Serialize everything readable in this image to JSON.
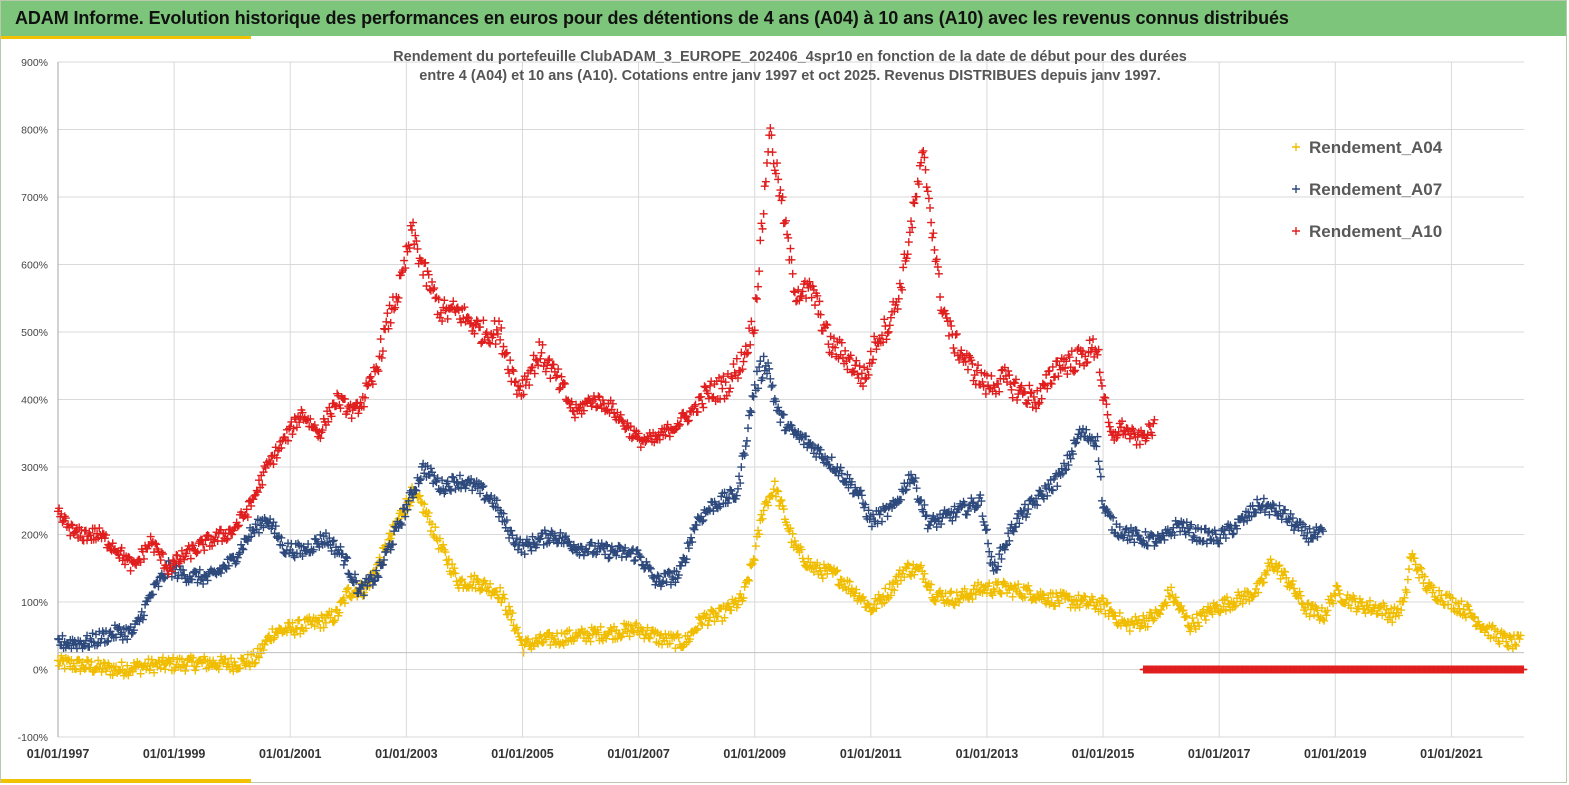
{
  "banner": {
    "title": "ADAM Informe. Evolution historique des performances en euros pour des détentions de 4 ans (A04) à 10 ans (A10) avec les revenus connus distribués"
  },
  "colors": {
    "banner": "#7dc57a",
    "accent": "#f2c200",
    "A04": "#f0bd00",
    "A07": "#2e4a7d",
    "A10": "#e01e1e",
    "grid": "#d9d9d9"
  },
  "chart_data": {
    "type": "scatter",
    "title_line1": "Rendement du portefeuille ClubADAM_3_EUROPE_202406_4spr10  en fonction de la date de début pour des durées",
    "title_line2": "entre 4 (A04) et 10 ans (A10). Cotations entre janv 1997 et oct 2025. Revenus DISTRIBUES depuis janv 1997.",
    "xlabel": "",
    "ylabel": "",
    "x_range": [
      1997.0,
      2022.25
    ],
    "ylim": [
      -100,
      900
    ],
    "y_ticks": [
      900,
      800,
      700,
      600,
      500,
      400,
      300,
      200,
      100,
      0,
      -100
    ],
    "y_tick_labels": [
      "900%",
      "800%",
      "700%",
      "600%",
      "500%",
      "400%",
      "300%",
      "200%",
      "100%",
      "0%",
      "-100%"
    ],
    "x_ticks": [
      1997,
      1999,
      2001,
      2003,
      2005,
      2007,
      2009,
      2011,
      2013,
      2015,
      2017,
      2019,
      2021
    ],
    "x_tick_labels": [
      "01/01/1997",
      "01/01/1999",
      "01/01/2001",
      "01/01/2003",
      "01/01/2005",
      "01/01/2007",
      "01/01/2009",
      "01/01/2011",
      "01/01/2013",
      "01/01/2015",
      "01/01/2017",
      "01/01/2019",
      "01/01/2021"
    ],
    "legend_position": "top-right",
    "series": [
      {
        "name": "Rendement_A04",
        "key": "A04",
        "x": [
          1997.0,
          1997.5,
          1998.0,
          1998.5,
          1999.0,
          1999.5,
          2000.0,
          2000.4,
          2000.7,
          2001.0,
          2001.5,
          2001.8,
          2002.0,
          2002.3,
          2002.6,
          2002.9,
          2003.1,
          2003.3,
          2003.6,
          2003.9,
          2004.2,
          2004.6,
          2004.9,
          2005.0,
          2005.5,
          2006.0,
          2006.5,
          2007.0,
          2007.4,
          2007.8,
          2008.1,
          2008.4,
          2008.8,
          2009.0,
          2009.15,
          2009.35,
          2009.7,
          2010.0,
          2010.4,
          2010.8,
          2011.0,
          2011.3,
          2011.6,
          2011.9,
          2012.1,
          2012.5,
          2012.9,
          2013.3,
          2013.7,
          2014.1,
          2014.6,
          2015.0,
          2015.4,
          2015.8,
          2016.0,
          2016.15,
          2016.5,
          2016.9,
          2017.2,
          2017.5,
          2017.7,
          2017.9,
          2018.2,
          2018.5,
          2018.8,
          2019.0,
          2019.4,
          2019.8,
          2020.0,
          2020.2,
          2020.3,
          2020.6,
          2021.0,
          2021.3,
          2021.6,
          2022.0,
          2022.2
        ],
        "y": [
          10,
          5,
          0,
          5,
          8,
          10,
          8,
          15,
          55,
          60,
          70,
          80,
          115,
          120,
          170,
          230,
          260,
          240,
          180,
          130,
          130,
          115,
          60,
          35,
          45,
          50,
          55,
          60,
          45,
          40,
          75,
          80,
          105,
          170,
          240,
          270,
          180,
          150,
          140,
          110,
          90,
          115,
          150,
          145,
          110,
          105,
          120,
          120,
          115,
          105,
          100,
          95,
          65,
          75,
          85,
          115,
          65,
          90,
          100,
          110,
          120,
          160,
          130,
          90,
          80,
          115,
          95,
          90,
          80,
          100,
          170,
          120,
          100,
          85,
          60,
          40,
          40
        ]
      },
      {
        "name": "Rendement_A07",
        "key": "A07",
        "x": [
          1997.0,
          1997.5,
          1998.0,
          1998.3,
          1998.6,
          1998.9,
          1999.2,
          1999.6,
          2000.0,
          2000.3,
          2000.6,
          2000.9,
          2001.2,
          2001.6,
          2001.9,
          2002.2,
          2002.5,
          2002.8,
          2003.0,
          2003.3,
          2003.6,
          2003.9,
          2004.2,
          2004.5,
          2004.8,
          2005.0,
          2005.5,
          2006.0,
          2006.5,
          2007.0,
          2007.3,
          2007.7,
          2008.0,
          2008.3,
          2008.7,
          2009.0,
          2009.2,
          2009.4,
          2009.6,
          2010.0,
          2010.4,
          2010.8,
          2011.0,
          2011.4,
          2011.7,
          2012.0,
          2012.4,
          2012.9,
          2013.1,
          2013.5,
          2013.9,
          2014.3,
          2014.6,
          2014.9,
          2015.0,
          2015.2,
          2015.6,
          2016.0,
          2016.3,
          2016.6,
          2017.0,
          2017.4,
          2017.7,
          2018.1,
          2018.5,
          2018.8
        ],
        "y": [
          40,
          40,
          55,
          55,
          110,
          150,
          140,
          135,
          160,
          200,
          225,
          180,
          175,
          195,
          170,
          115,
          140,
          200,
          240,
          300,
          270,
          280,
          270,
          250,
          200,
          180,
          200,
          180,
          175,
          170,
          130,
          140,
          220,
          245,
          260,
          420,
          460,
          380,
          355,
          330,
          300,
          260,
          220,
          240,
          290,
          215,
          230,
          250,
          145,
          220,
          255,
          290,
          350,
          340,
          240,
          210,
          195,
          190,
          215,
          200,
          195,
          220,
          245,
          230,
          200,
          200
        ]
      },
      {
        "name": "Rendement_A10",
        "key": "A10",
        "x": [
          1997.0,
          1997.3,
          1997.7,
          1998.0,
          1998.3,
          1998.6,
          1998.9,
          1999.2,
          1999.6,
          2000.0,
          2000.3,
          2000.6,
          2000.9,
          2001.2,
          2001.5,
          2001.8,
          2002.1,
          2002.4,
          2002.7,
          2002.9,
          2003.1,
          2003.3,
          2003.6,
          2003.9,
          2004.3,
          2004.6,
          2004.9,
          2005.0,
          2005.3,
          2005.6,
          2005.9,
          2006.2,
          2006.5,
          2006.8,
          2007.0,
          2007.3,
          2007.6,
          2007.9,
          2008.2,
          2008.5,
          2008.8,
          2009.0,
          2009.15,
          2009.25,
          2009.45,
          2009.7,
          2010.0,
          2010.3,
          2010.5,
          2010.7,
          2010.9,
          2011.1,
          2011.3,
          2011.5,
          2011.7,
          2011.9,
          2012.0,
          2012.2,
          2012.4,
          2012.7,
          2013.0,
          2013.3,
          2013.6,
          2013.9,
          2014.2,
          2014.6,
          2014.9,
          2015.0,
          2015.15,
          2015.3,
          2015.6,
          2015.9
        ],
        "y": [
          230,
          200,
          200,
          180,
          150,
          190,
          150,
          170,
          190,
          205,
          240,
          300,
          340,
          380,
          350,
          400,
          380,
          420,
          520,
          570,
          650,
          590,
          530,
          530,
          500,
          500,
          420,
          420,
          470,
          430,
          380,
          400,
          390,
          360,
          340,
          340,
          360,
          380,
          410,
          420,
          460,
          520,
          680,
          800,
          700,
          560,
          560,
          480,
          470,
          450,
          430,
          490,
          510,
          560,
          660,
          760,
          700,
          550,
          490,
          450,
          420,
          430,
          410,
          400,
          450,
          460,
          480,
          410,
          340,
          360,
          340,
          360
        ]
      }
    ],
    "zero_band": {
      "name": "Rendement_A10",
      "x_start": 2015.7,
      "x_end": 2022.25,
      "y": 0
    }
  }
}
